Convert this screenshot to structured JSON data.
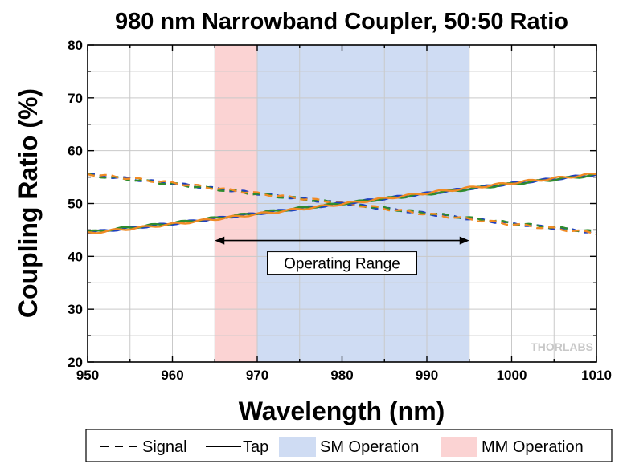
{
  "chart_data": {
    "type": "line",
    "title": "980 nm Narrowband Coupler, 50:50 Ratio",
    "xlabel": "Wavelength (nm)",
    "ylabel": "Coupling Ratio (%)",
    "xlim": [
      950,
      1010
    ],
    "ylim": [
      20,
      80
    ],
    "x_ticks": [
      "950",
      "960",
      "970",
      "980",
      "990",
      "1000",
      "1010"
    ],
    "y_ticks": [
      "20",
      "30",
      "40",
      "50",
      "60",
      "70",
      "80"
    ],
    "grid": true,
    "regions": [
      {
        "name": "SM Operation",
        "x_range": [
          970,
          995
        ],
        "color": "#cfdcf3"
      },
      {
        "name": "MM Operation",
        "x_range": [
          965,
          970
        ],
        "color": "#fbd3d3"
      }
    ],
    "annotation": {
      "text": "Operating Range",
      "x_range": [
        965,
        995
      ],
      "y": 43
    },
    "series": [
      {
        "name": "Signal",
        "style": "dashed",
        "color": "#1f3fbf",
        "x": [
          950,
          960,
          970,
          980,
          990,
          1000,
          1010
        ],
        "y": [
          55.5,
          53.8,
          51.9,
          50.0,
          48.1,
          46.2,
          44.5
        ]
      },
      {
        "name": "Signal",
        "style": "dashed",
        "color": "#2e8b2e",
        "x": [
          950,
          960,
          970,
          980,
          990,
          1000,
          1010
        ],
        "y": [
          55.4,
          53.7,
          51.8,
          50.0,
          48.2,
          46.3,
          44.6
        ]
      },
      {
        "name": "Signal",
        "style": "dashed",
        "color": "#f08a24",
        "x": [
          950,
          960,
          970,
          980,
          990,
          1000,
          1010
        ],
        "y": [
          55.6,
          53.9,
          51.9,
          50.1,
          48.0,
          46.1,
          44.4
        ]
      },
      {
        "name": "Tap",
        "style": "solid",
        "color": "#1f3fbf",
        "x": [
          950,
          960,
          970,
          980,
          990,
          1000,
          1010
        ],
        "y": [
          44.5,
          46.2,
          48.1,
          50.0,
          51.9,
          53.8,
          55.5
        ]
      },
      {
        "name": "Tap",
        "style": "solid",
        "color": "#2e8b2e",
        "x": [
          950,
          960,
          970,
          980,
          990,
          1000,
          1010
        ],
        "y": [
          44.6,
          46.3,
          48.2,
          50.0,
          51.8,
          53.7,
          55.4
        ]
      },
      {
        "name": "Tap",
        "style": "solid",
        "color": "#f08a24",
        "x": [
          950,
          960,
          970,
          980,
          990,
          1000,
          1010
        ],
        "y": [
          44.4,
          46.1,
          48.0,
          49.9,
          52.0,
          53.9,
          55.6
        ]
      }
    ],
    "legend": {
      "placement": "bottom",
      "entries": [
        {
          "label": "Signal",
          "kind": "dashed-line"
        },
        {
          "label": "Tap",
          "kind": "solid-line"
        },
        {
          "label": "SM Operation",
          "kind": "swatch",
          "color": "#cfdcf3"
        },
        {
          "label": "MM Operation",
          "kind": "swatch",
          "color": "#fbd3d3"
        }
      ]
    },
    "watermark": "THORLABS"
  }
}
